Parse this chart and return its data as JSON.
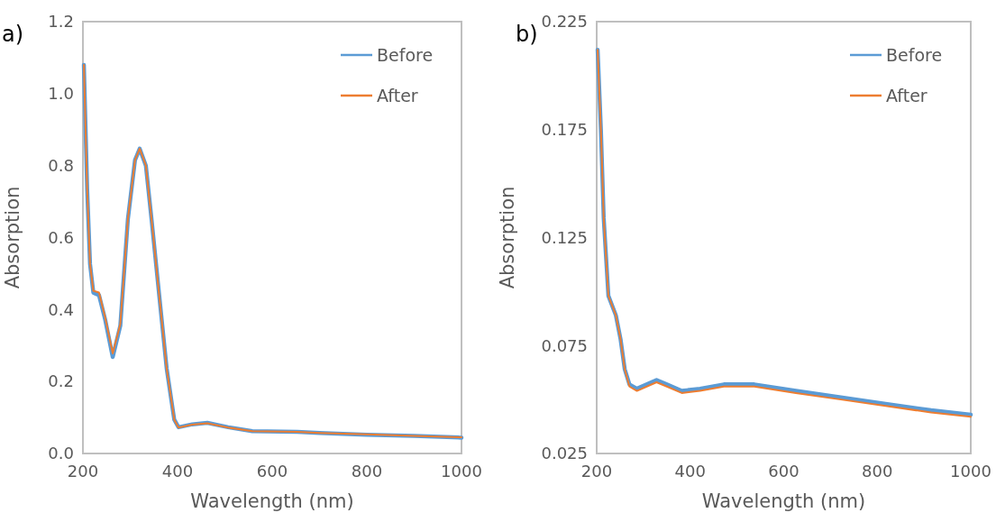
{
  "chart_data": [
    {
      "type": "line",
      "title": "a)",
      "xlabel": "Wavelength (nm)",
      "ylabel": "Absorption",
      "xlim": [
        200,
        1000
      ],
      "xticks": [
        200,
        400,
        600,
        800,
        1000
      ],
      "ylim": [
        0,
        1.2
      ],
      "yticks": [
        {
          "value": 0,
          "label": "0.0"
        },
        0.2,
        0.4,
        0.6,
        0.8,
        {
          "value": 1,
          "label": "1.0"
        },
        1.2
      ],
      "grid": false,
      "legend": "top right",
      "line_style": "solid",
      "marker": "none",
      "series": [
        {
          "name": "Before",
          "color": "#5b9bd5",
          "x": [
            202,
            209,
            215,
            222,
            234,
            247,
            263,
            279,
            295,
            310,
            320,
            333,
            345,
            361,
            377,
            393,
            402,
            431,
            463,
            507,
            558,
            653,
            700,
            800,
            900,
            1000
          ],
          "values": [
            1.08,
            0.733,
            0.527,
            0.447,
            0.44,
            0.372,
            0.268,
            0.355,
            0.651,
            0.815,
            0.847,
            0.8,
            0.651,
            0.442,
            0.236,
            0.094,
            0.073,
            0.081,
            0.085,
            0.073,
            0.062,
            0.06,
            0.057,
            0.052,
            0.049,
            0.044
          ]
        },
        {
          "name": "After",
          "color": "#ed7d31",
          "x": [
            202,
            209,
            215,
            222,
            234,
            247,
            263,
            279,
            295,
            310,
            320,
            333,
            345,
            361,
            377,
            393,
            402,
            431,
            463,
            507,
            558,
            653,
            700,
            800,
            900,
            1000
          ],
          "values": [
            1.08,
            0.733,
            0.527,
            0.452,
            0.447,
            0.378,
            0.278,
            0.36,
            0.651,
            0.815,
            0.847,
            0.8,
            0.651,
            0.442,
            0.236,
            0.094,
            0.072,
            0.08,
            0.084,
            0.072,
            0.062,
            0.06,
            0.057,
            0.053,
            0.049,
            0.045
          ]
        }
      ]
    },
    {
      "type": "line",
      "title": "b)",
      "xlabel": "Wavelength (nm)",
      "ylabel": "Absorption",
      "xlim": [
        200,
        1000
      ],
      "xticks": [
        200,
        400,
        600,
        800,
        1000
      ],
      "ylim": [
        0.025,
        0.225
      ],
      "yticks": [
        0.025,
        0.075,
        0.125,
        0.175,
        0.225
      ],
      "grid": false,
      "legend": "top right",
      "line_style": "solid",
      "marker": "none",
      "series": [
        {
          "name": "Before",
          "color": "#5b9bd5",
          "x": [
            202,
            209,
            215,
            225,
            241,
            251,
            260,
            270,
            286,
            328,
            350,
            382,
            421,
            472,
            537,
            626,
            722,
            818,
            915,
            1000
          ],
          "values": [
            0.212,
            0.175,
            0.134,
            0.098,
            0.089,
            0.078,
            0.064,
            0.057,
            0.055,
            0.059,
            0.057,
            0.054,
            0.055,
            0.057,
            0.057,
            0.054,
            0.051,
            0.048,
            0.045,
            0.043
          ]
        },
        {
          "name": "After",
          "color": "#ed7d31",
          "x": [
            202,
            209,
            215,
            225,
            241,
            251,
            260,
            270,
            286,
            328,
            350,
            382,
            421,
            472,
            537,
            626,
            722,
            818,
            915,
            1000
          ],
          "values": [
            0.212,
            0.175,
            0.134,
            0.098,
            0.089,
            0.078,
            0.064,
            0.056,
            0.054,
            0.058,
            0.056,
            0.053,
            0.054,
            0.056,
            0.056,
            0.053,
            0.05,
            0.047,
            0.044,
            0.042
          ]
        }
      ]
    }
  ]
}
